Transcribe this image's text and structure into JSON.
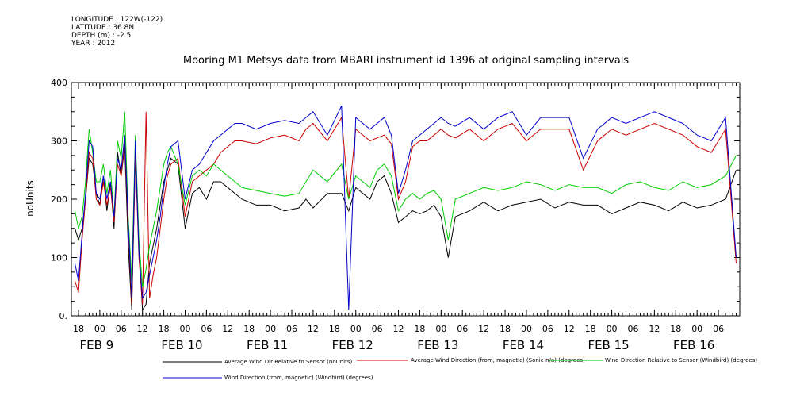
{
  "meta": {
    "longitude": "LONGITUDE : 122W(-122)",
    "latitude": "LATITUDE : 36.8N",
    "depth": "DEPTH (m) : -2.5",
    "year": "YEAR : 2012"
  },
  "chart_data": {
    "type": "line",
    "title": "Mooring M1 Metsys data from MBARI instrument id 1396 at original sampling intervals",
    "ylabel": "noUnits",
    "xlabel": "",
    "ylim": [
      0,
      400
    ],
    "y_ticks": [
      0,
      100,
      200,
      300,
      400
    ],
    "y_tick_labels": [
      "0.",
      "100",
      "200",
      "300",
      "400"
    ],
    "xlim": [
      -8,
      180
    ],
    "x_unit": "hours since FEB 9 00:00",
    "hour_ticks": [
      -6,
      0,
      6,
      12,
      18,
      24,
      30,
      36,
      42,
      48,
      54,
      60,
      66,
      72,
      78,
      84,
      90,
      96,
      102,
      108,
      114,
      120,
      126,
      132,
      138,
      144,
      150,
      156,
      162,
      168,
      174
    ],
    "hour_tick_labels": [
      "18",
      "00",
      "06",
      "12",
      "18",
      "00",
      "06",
      "12",
      "18",
      "00",
      "06",
      "12",
      "18",
      "00",
      "06",
      "12",
      "18",
      "00",
      "06",
      "12",
      "18",
      "00",
      "06",
      "12",
      "18",
      "00",
      "06",
      "12",
      "18",
      "00",
      "06"
    ],
    "date_labels": [
      {
        "label": "FEB  9",
        "hour": 0
      },
      {
        "label": "FEB 10",
        "hour": 24
      },
      {
        "label": "FEB 11",
        "hour": 48
      },
      {
        "label": "FEB 12",
        "hour": 72
      },
      {
        "label": "FEB 13",
        "hour": 96
      },
      {
        "label": "FEB 14",
        "hour": 120
      },
      {
        "label": "FEB 15",
        "hour": 144
      },
      {
        "label": "FEB 16",
        "hour": 168
      }
    ],
    "grid": false,
    "legend_position": "bottom",
    "series": [
      {
        "name": "Average Wind Dir Relative to Sensor (noUnits)",
        "color": "#000000",
        "x": [
          -7,
          -6,
          -5,
          -4,
          -3,
          -2,
          -1,
          0,
          1,
          2,
          3,
          4,
          5,
          6,
          7,
          8,
          9,
          10,
          11,
          12,
          13,
          14,
          15,
          16,
          17,
          18,
          19,
          20,
          22,
          24,
          26,
          28,
          30,
          32,
          34,
          36,
          38,
          40,
          44,
          48,
          52,
          56,
          58,
          60,
          64,
          68,
          70,
          72,
          74,
          76,
          78,
          80,
          82,
          84,
          86,
          88,
          90,
          92,
          94,
          96,
          98,
          100,
          104,
          108,
          112,
          116,
          120,
          124,
          128,
          132,
          136,
          140,
          144,
          148,
          152,
          156,
          160,
          164,
          168,
          172,
          176,
          179
        ],
        "y": [
          150,
          130,
          150,
          200,
          270,
          260,
          210,
          190,
          240,
          180,
          230,
          150,
          280,
          240,
          290,
          120,
          10,
          270,
          120,
          10,
          20,
          90,
          120,
          150,
          190,
          230,
          250,
          270,
          260,
          150,
          210,
          220,
          200,
          230,
          230,
          220,
          210,
          200,
          190,
          190,
          180,
          185,
          200,
          185,
          210,
          210,
          180,
          220,
          210,
          200,
          230,
          240,
          210,
          160,
          170,
          180,
          175,
          180,
          190,
          170,
          100,
          170,
          180,
          195,
          180,
          190,
          195,
          200,
          185,
          195,
          190,
          190,
          175,
          185,
          195,
          190,
          180,
          195,
          185,
          190,
          200,
          250
        ]
      },
      {
        "name": "Average Wind Direction (from, magnetic) (Sonic-n/a) (degrees)",
        "color": "#cc0000",
        "x": [
          -7,
          -6,
          -5,
          -4,
          -3,
          -2,
          -1,
          0,
          1,
          2,
          3,
          4,
          5,
          6,
          7,
          8,
          9,
          10,
          11,
          12,
          13,
          14,
          15,
          16,
          17,
          18,
          19,
          20,
          22,
          24,
          26,
          28,
          30,
          32,
          34,
          36,
          38,
          40,
          44,
          48,
          52,
          56,
          58,
          60,
          64,
          68,
          70,
          72,
          74,
          76,
          78,
          80,
          82,
          84,
          86,
          88,
          90,
          92,
          94,
          96,
          98,
          100,
          104,
          108,
          112,
          116,
          120,
          124,
          128,
          132,
          136,
          140,
          144,
          148,
          152,
          156,
          160,
          164,
          168,
          172,
          176,
          179
        ],
        "y": [
          60,
          40,
          130,
          200,
          280,
          270,
          200,
          190,
          230,
          190,
          220,
          160,
          260,
          240,
          300,
          150,
          20,
          280,
          100,
          20,
          350,
          30,
          70,
          100,
          150,
          200,
          240,
          260,
          270,
          170,
          230,
          240,
          250,
          260,
          280,
          290,
          300,
          300,
          295,
          305,
          310,
          300,
          320,
          330,
          300,
          340,
          200,
          320,
          310,
          300,
          305,
          310,
          295,
          200,
          230,
          290,
          300,
          300,
          310,
          320,
          310,
          305,
          320,
          300,
          320,
          330,
          300,
          320,
          320,
          320,
          250,
          300,
          320,
          310,
          320,
          330,
          320,
          310,
          290,
          280,
          320,
          90
        ]
      },
      {
        "name": "Wind Direction Relative to Sensor (Windbird) (degrees)",
        "color": "#00cc00",
        "x": [
          -7,
          -6,
          -5,
          -4,
          -3,
          -2,
          -1,
          0,
          1,
          2,
          3,
          4,
          5,
          6,
          7,
          8,
          9,
          10,
          11,
          12,
          13,
          14,
          15,
          16,
          17,
          18,
          19,
          20,
          22,
          24,
          26,
          28,
          30,
          32,
          34,
          36,
          38,
          40,
          44,
          48,
          52,
          56,
          58,
          60,
          64,
          68,
          70,
          72,
          74,
          76,
          78,
          80,
          82,
          84,
          86,
          88,
          90,
          92,
          94,
          96,
          98,
          100,
          104,
          108,
          112,
          116,
          120,
          124,
          128,
          132,
          136,
          140,
          144,
          148,
          152,
          156,
          160,
          164,
          168,
          172,
          176,
          179
        ],
        "y": [
          180,
          150,
          170,
          230,
          320,
          280,
          230,
          230,
          260,
          210,
          250,
          170,
          300,
          270,
          350,
          170,
          60,
          310,
          130,
          50,
          80,
          120,
          150,
          180,
          220,
          260,
          280,
          290,
          260,
          190,
          240,
          250,
          240,
          260,
          250,
          240,
          230,
          220,
          215,
          210,
          205,
          210,
          230,
          250,
          230,
          260,
          200,
          240,
          230,
          220,
          250,
          260,
          240,
          180,
          200,
          210,
          200,
          210,
          215,
          200,
          130,
          200,
          210,
          220,
          215,
          220,
          230,
          225,
          215,
          225,
          220,
          220,
          210,
          225,
          230,
          220,
          215,
          230,
          220,
          225,
          240,
          275
        ]
      },
      {
        "name": "Wind Direction (from, magnetic) (Windbird) (degrees)",
        "color": "#0000cc",
        "x": [
          -7,
          -6,
          -5,
          -4,
          -3,
          -2,
          -1,
          0,
          1,
          2,
          3,
          4,
          5,
          6,
          7,
          8,
          9,
          10,
          11,
          12,
          13,
          14,
          15,
          16,
          17,
          18,
          19,
          20,
          22,
          24,
          26,
          28,
          30,
          32,
          34,
          36,
          38,
          40,
          44,
          48,
          52,
          56,
          58,
          60,
          64,
          68,
          70,
          72,
          74,
          76,
          78,
          80,
          82,
          84,
          86,
          88,
          90,
          92,
          94,
          96,
          98,
          100,
          104,
          108,
          112,
          116,
          120,
          124,
          128,
          132,
          136,
          140,
          144,
          148,
          152,
          156,
          160,
          164,
          168,
          172,
          176,
          179
        ],
        "y": [
          90,
          60,
          140,
          210,
          300,
          290,
          210,
          200,
          240,
          200,
          230,
          170,
          270,
          250,
          310,
          160,
          30,
          300,
          110,
          30,
          40,
          70,
          100,
          130,
          170,
          220,
          260,
          290,
          300,
          200,
          250,
          260,
          280,
          300,
          310,
          320,
          330,
          330,
          320,
          330,
          335,
          330,
          340,
          350,
          310,
          360,
          10,
          340,
          330,
          320,
          330,
          340,
          310,
          210,
          250,
          300,
          310,
          320,
          330,
          340,
          330,
          325,
          340,
          320,
          340,
          350,
          310,
          340,
          340,
          340,
          270,
          320,
          340,
          330,
          340,
          350,
          340,
          330,
          310,
          300,
          340,
          100
        ]
      }
    ]
  },
  "legend": [
    {
      "label": "Average Wind Dir Relative to Sensor (noUnits)",
      "color": "#000000"
    },
    {
      "label": "Average Wind Direction (from, magnetic) (Sonic-n/a) (degrees)",
      "color": "#cc0000"
    },
    {
      "label": "Wind Direction Relative to Sensor (Windbird) (degrees)",
      "color": "#00cc00"
    },
    {
      "label": "Wind Direction (from, magnetic) (Windbird) (degrees)",
      "color": "#0000cc"
    }
  ]
}
